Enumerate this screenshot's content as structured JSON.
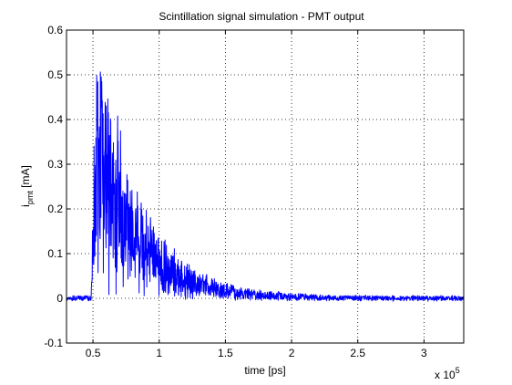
{
  "chart_data": {
    "type": "line",
    "title": "Scintillation signal simulation - PMT output",
    "xlabel": "time [ps]",
    "ylabel": {
      "base": "i",
      "subscript": "pmt",
      "unit": " [mA]"
    },
    "x_exponent_label": {
      "base": "x 10",
      "exponent": "5"
    },
    "xlim": [
      30000,
      330000
    ],
    "ylim": [
      -0.1,
      0.6
    ],
    "x_ticks": [
      50000,
      100000,
      150000,
      200000,
      250000,
      300000
    ],
    "x_tick_labels": [
      "0.5",
      "1",
      "1.5",
      "2",
      "2.5",
      "3"
    ],
    "y_ticks": [
      -0.1,
      0,
      0.1,
      0.2,
      0.3,
      0.4,
      0.5,
      0.6
    ],
    "y_tick_labels": [
      "-0.1",
      "0",
      "0.1",
      "0.2",
      "0.3",
      "0.4",
      "0.5",
      "0.6"
    ],
    "grid": true,
    "grid_style": "dotted",
    "series": [
      {
        "color": "#0000ff",
        "baseline": 0.0,
        "baseline_noise": 0.006,
        "onset_x": 48500,
        "rise_end_x": 53000,
        "peak_envelope_y": 0.55,
        "decay_time_constant_x": 32000,
        "noise_fraction": 0.55,
        "sample_count": 1500,
        "x_end": 330000
      }
    ]
  }
}
